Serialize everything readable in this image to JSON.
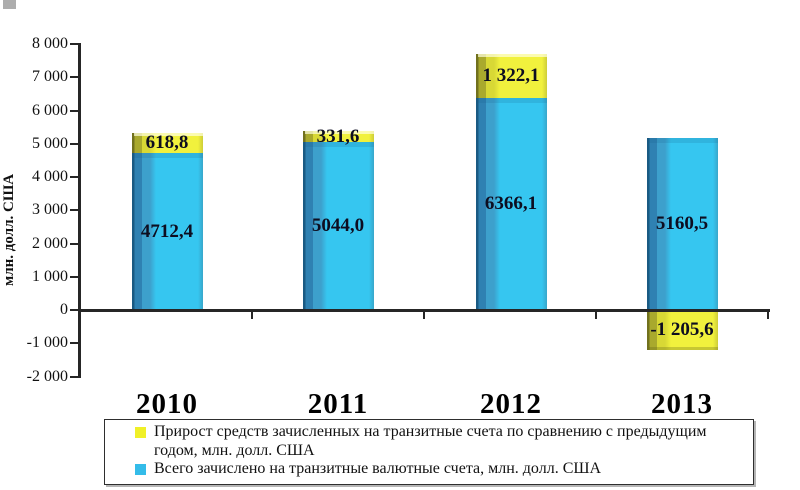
{
  "chart_data": {
    "type": "bar",
    "stacked": true,
    "title": "",
    "categories": [
      "2010",
      "2011",
      "2012",
      "2013"
    ],
    "series": [
      {
        "name": "Всего зачислено на транзитные валютные счета, млн. долл. США",
        "values": [
          4712.4,
          5044.0,
          6366.1,
          5160.5
        ],
        "labels": [
          "4712,4",
          "5044,0",
          "6366,1",
          "5160,5"
        ],
        "color": "#36c6f0"
      },
      {
        "name": "Прирост средств зачисленных на транзитные счета по сравнению с предыдущим годом, млн. долл. США",
        "values": [
          618.8,
          331.6,
          1322.1,
          -1205.6
        ],
        "labels": [
          "618,8",
          "331,6",
          "1 322,1",
          "-1 205,6"
        ],
        "color": "#f1f13d"
      }
    ],
    "ylabel": "млн. долл. США",
    "ylim": [
      -2000,
      8000
    ],
    "ytick_step": 1000,
    "ytick_labels": [
      "8 000",
      "7 000",
      "6 000",
      "5 000",
      "4 000",
      "3 000",
      "2 000",
      "1 000",
      "0",
      "-1 000",
      "-2 000"
    ],
    "grid": false,
    "legend_position": "bottom"
  },
  "legend": {
    "items": [
      {
        "swatch_color": "#f0f028",
        "lines": [
          "Прирост средств зачисленных на транзитные счета по сравнению с предыдущим",
          "годом, млн. долл. США"
        ]
      },
      {
        "swatch_color": "#34bce9",
        "lines": [
          "Всего зачислено на транзитные валютные счета, млн. долл. США"
        ]
      }
    ]
  },
  "colors": {
    "axis": "#262626",
    "blue": {
      "edge": "#1a5a83",
      "dark": "#2f81b2",
      "mid": "#3da0cc",
      "main": "#36c6f0",
      "right": "#38a6ca"
    },
    "yellow": {
      "edge": "#71711e",
      "dark": "#a9a92d",
      "mid": "#d8d835",
      "main": "#f1f13d",
      "right": "#cdcd38"
    },
    "value_label_text": "#0d0d20"
  }
}
